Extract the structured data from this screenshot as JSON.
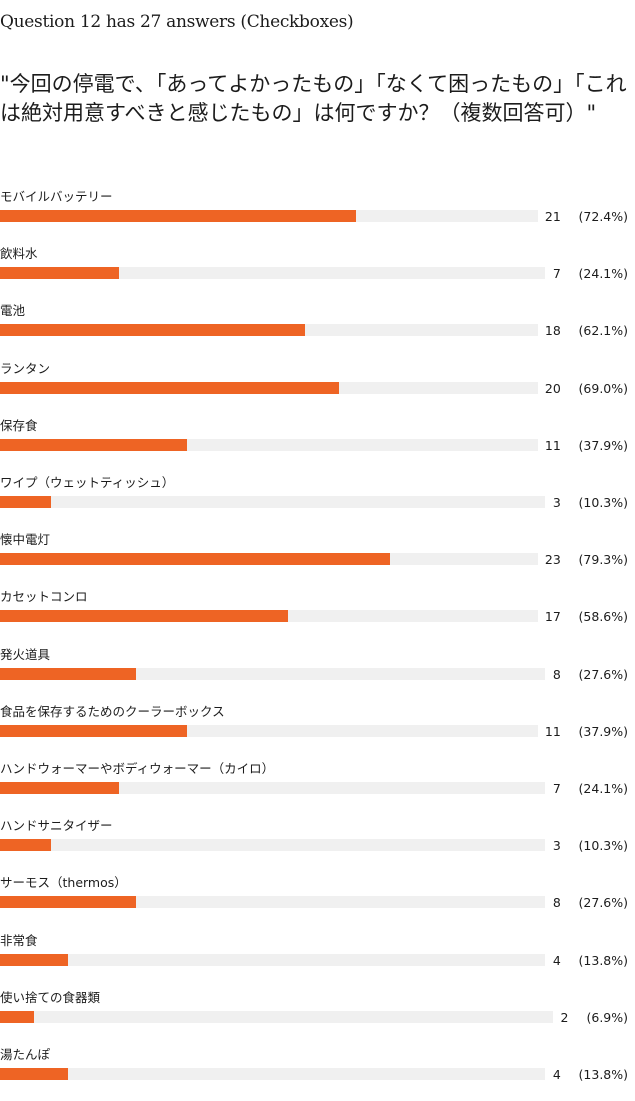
{
  "header": {
    "question_title": "Question 12 has 27 answers (Checkboxes)",
    "prompt": "\"今回の停電で、「あってよかったもの」「なくて困ったもの」「これは絶対用意すべきと感じたもの」は何ですか？（複数回答可）\""
  },
  "colors": {
    "bar": "#ee6424",
    "track": "#f0f0f0"
  },
  "chart_data": {
    "type": "bar",
    "orientation": "horizontal",
    "categories": [
      "モバイルバッテリー",
      "飲料水",
      "電池",
      "ランタン",
      "保存食",
      "ワイプ（ウェットティッシュ）",
      "懐中電灯",
      "カセットコンロ",
      "発火道具",
      "食品を保存するためのクーラーボックス",
      "ハンドウォーマーやボディウォーマー（カイロ）",
      "ハンドサニタイザー",
      "サーモス（thermos）",
      "非常食",
      "使い捨ての食器類",
      "湯たんぽ"
    ],
    "values": [
      21,
      7,
      18,
      20,
      11,
      3,
      23,
      17,
      8,
      11,
      7,
      3,
      8,
      4,
      2,
      4
    ],
    "percent_labels": [
      "(72.4%)",
      "(24.1%)",
      "(62.1%)",
      "(69.0%)",
      "(37.9%)",
      "(10.3%)",
      "(79.3%)",
      "(58.6%)",
      "(27.6%)",
      "(37.9%)",
      "(24.1%)",
      "(10.3%)",
      "(27.6%)",
      "(13.8%)",
      "(6.9%)",
      "(13.8%)"
    ],
    "percents": [
      72.4,
      24.1,
      62.1,
      69.0,
      37.9,
      10.3,
      79.3,
      58.6,
      27.6,
      37.9,
      24.1,
      10.3,
      27.6,
      13.8,
      6.9,
      13.8
    ],
    "xlim": [
      0,
      29
    ]
  }
}
